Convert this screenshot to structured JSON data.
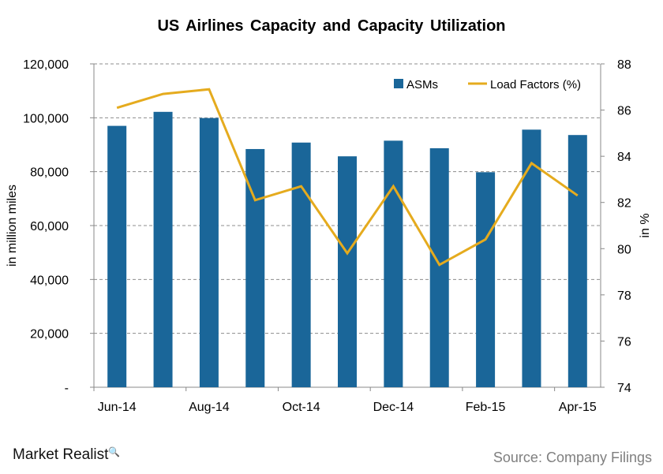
{
  "chart_data": {
    "type": "bar+line",
    "title": "US Airlines  Capacity  and  Capacity  Utilization",
    "categories": [
      "Jun-14",
      "Jul-14",
      "Aug-14",
      "Sep-14",
      "Oct-14",
      "Nov-14",
      "Dec-14",
      "Jan-15",
      "Feb-15",
      "Mar-15",
      "Apr-15"
    ],
    "x_tick_labels": [
      "Jun-14",
      "Aug-14",
      "Oct-14",
      "Dec-14",
      "Feb-15",
      "Apr-15"
    ],
    "series": [
      {
        "name": "ASMs",
        "type": "bar",
        "axis": "left",
        "color": "#1a6699",
        "values": [
          97000,
          102200,
          99900,
          88400,
          90800,
          85700,
          91500,
          88700,
          79800,
          95600,
          93600
        ]
      },
      {
        "name": "Load Factors (%)",
        "type": "line",
        "axis": "right",
        "color": "#e5ab1e",
        "values": [
          86.1,
          86.7,
          86.9,
          82.1,
          82.7,
          79.8,
          82.7,
          79.3,
          80.4,
          83.7,
          82.3
        ]
      }
    ],
    "ylabel_left": "in million miles",
    "ylim_left": [
      0,
      120000
    ],
    "yticks_left": [
      "-",
      "20,000",
      "40,000",
      "60,000",
      "80,000",
      "100,000",
      "120,000"
    ],
    "ylabel_right": "in %",
    "ylim_right": [
      74,
      88
    ],
    "yticks_right": [
      "74",
      "76",
      "78",
      "80",
      "82",
      "84",
      "86",
      "88"
    ],
    "grid": "horizontal dashed",
    "legend": "top-right"
  },
  "branding": {
    "logo": "Market Realist",
    "source": "Source: Company Filings"
  }
}
